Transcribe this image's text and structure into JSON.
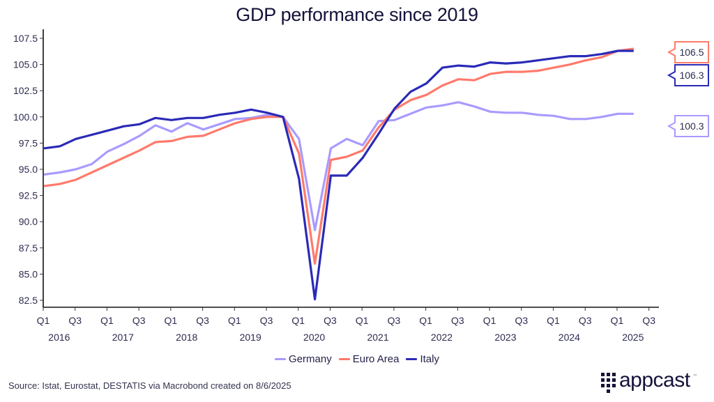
{
  "chart_data": {
    "type": "line",
    "title": "GDP performance since 2019",
    "xlabel": "",
    "ylabel": "",
    "ylim": [
      82.5,
      107.5
    ],
    "yticks": [
      "107.5",
      "105.0",
      "102.5",
      "100.0",
      "97.5",
      "95.0",
      "92.5",
      "90.0",
      "87.5",
      "85.0",
      "82.5"
    ],
    "ytick_values": [
      107.5,
      105.0,
      102.5,
      100.0,
      97.5,
      95.0,
      92.5,
      90.0,
      87.5,
      85.0,
      82.5
    ],
    "grid": false,
    "x": [
      "2016Q1",
      "2016Q2",
      "2016Q3",
      "2016Q4",
      "2017Q1",
      "2017Q2",
      "2017Q3",
      "2017Q4",
      "2018Q1",
      "2018Q2",
      "2018Q3",
      "2018Q4",
      "2019Q1",
      "2019Q2",
      "2019Q3",
      "2019Q4",
      "2020Q1",
      "2020Q2",
      "2020Q3",
      "2020Q4",
      "2021Q1",
      "2021Q2",
      "2021Q3",
      "2021Q4",
      "2022Q1",
      "2022Q2",
      "2022Q3",
      "2022Q4",
      "2023Q1",
      "2023Q2",
      "2023Q3",
      "2023Q4",
      "2024Q1",
      "2024Q2",
      "2024Q3",
      "2024Q4",
      "2025Q1",
      "2025Q2"
    ],
    "xticks": [
      {
        "quarter": "Q1",
        "year": "2016"
      },
      {
        "quarter": "Q3",
        "year": ""
      },
      {
        "quarter": "Q1",
        "year": "2017"
      },
      {
        "quarter": "Q3",
        "year": ""
      },
      {
        "quarter": "Q1",
        "year": "2018"
      },
      {
        "quarter": "Q3",
        "year": ""
      },
      {
        "quarter": "Q1",
        "year": "2019"
      },
      {
        "quarter": "Q3",
        "year": ""
      },
      {
        "quarter": "Q1",
        "year": "2020"
      },
      {
        "quarter": "Q3",
        "year": ""
      },
      {
        "quarter": "Q1",
        "year": "2021"
      },
      {
        "quarter": "Q3",
        "year": ""
      },
      {
        "quarter": "Q1",
        "year": "2022"
      },
      {
        "quarter": "Q3",
        "year": ""
      },
      {
        "quarter": "Q1",
        "year": "2023"
      },
      {
        "quarter": "Q3",
        "year": ""
      },
      {
        "quarter": "Q1",
        "year": "2024"
      },
      {
        "quarter": "Q3",
        "year": ""
      },
      {
        "quarter": "Q1",
        "year": "2025"
      },
      {
        "quarter": "Q3",
        "year": ""
      }
    ],
    "year_labels": [
      "2016",
      "2017",
      "2018",
      "2019",
      "2020",
      "2021",
      "2022",
      "2023",
      "2024",
      "2025"
    ],
    "series": [
      {
        "name": "Germany",
        "color": "#a89bff",
        "values": [
          94.5,
          94.7,
          95.0,
          95.5,
          96.7,
          97.4,
          98.2,
          99.2,
          98.6,
          99.4,
          98.8,
          99.3,
          99.8,
          99.9,
          100.2,
          100.0,
          97.9,
          89.2,
          97.0,
          97.9,
          97.3,
          99.6,
          99.7,
          100.3,
          100.9,
          101.1,
          101.4,
          101.0,
          100.5,
          100.4,
          100.4,
          100.2,
          100.1,
          99.8,
          99.8,
          100.0,
          100.3,
          100.3
        ],
        "last_label": "100.3"
      },
      {
        "name": "Euro Area",
        "color": "#ff7a6b",
        "values": [
          93.4,
          93.6,
          94.0,
          94.7,
          95.4,
          96.1,
          96.8,
          97.6,
          97.7,
          98.1,
          98.2,
          98.8,
          99.4,
          99.8,
          100.0,
          100.0,
          96.5,
          86.0,
          95.9,
          96.2,
          96.8,
          99.0,
          100.7,
          101.6,
          102.1,
          103.0,
          103.6,
          103.5,
          104.1,
          104.3,
          104.3,
          104.4,
          104.7,
          105.0,
          105.4,
          105.7,
          106.3,
          106.5
        ],
        "last_label": "106.5"
      },
      {
        "name": "Italy",
        "color": "#2a2ab8",
        "values": [
          97.0,
          97.2,
          97.9,
          98.3,
          98.7,
          99.1,
          99.3,
          99.9,
          99.7,
          99.9,
          99.9,
          100.2,
          100.4,
          100.7,
          100.4,
          100.0,
          94.1,
          82.6,
          94.4,
          94.4,
          96.1,
          98.4,
          100.8,
          102.4,
          103.2,
          104.7,
          104.9,
          104.8,
          105.2,
          105.1,
          105.2,
          105.4,
          105.6,
          105.8,
          105.8,
          106.0,
          106.3,
          106.3
        ],
        "last_label": "106.3"
      }
    ],
    "legend": {
      "position": "bottom-center",
      "entries": [
        "Germany",
        "Euro Area",
        "Italy"
      ]
    }
  },
  "footer": {
    "source": "Source: Istat, Eurostat, DESTATIS via Macrobond created on 8/6/2025",
    "brand": "appcast",
    "trademark": "™"
  }
}
